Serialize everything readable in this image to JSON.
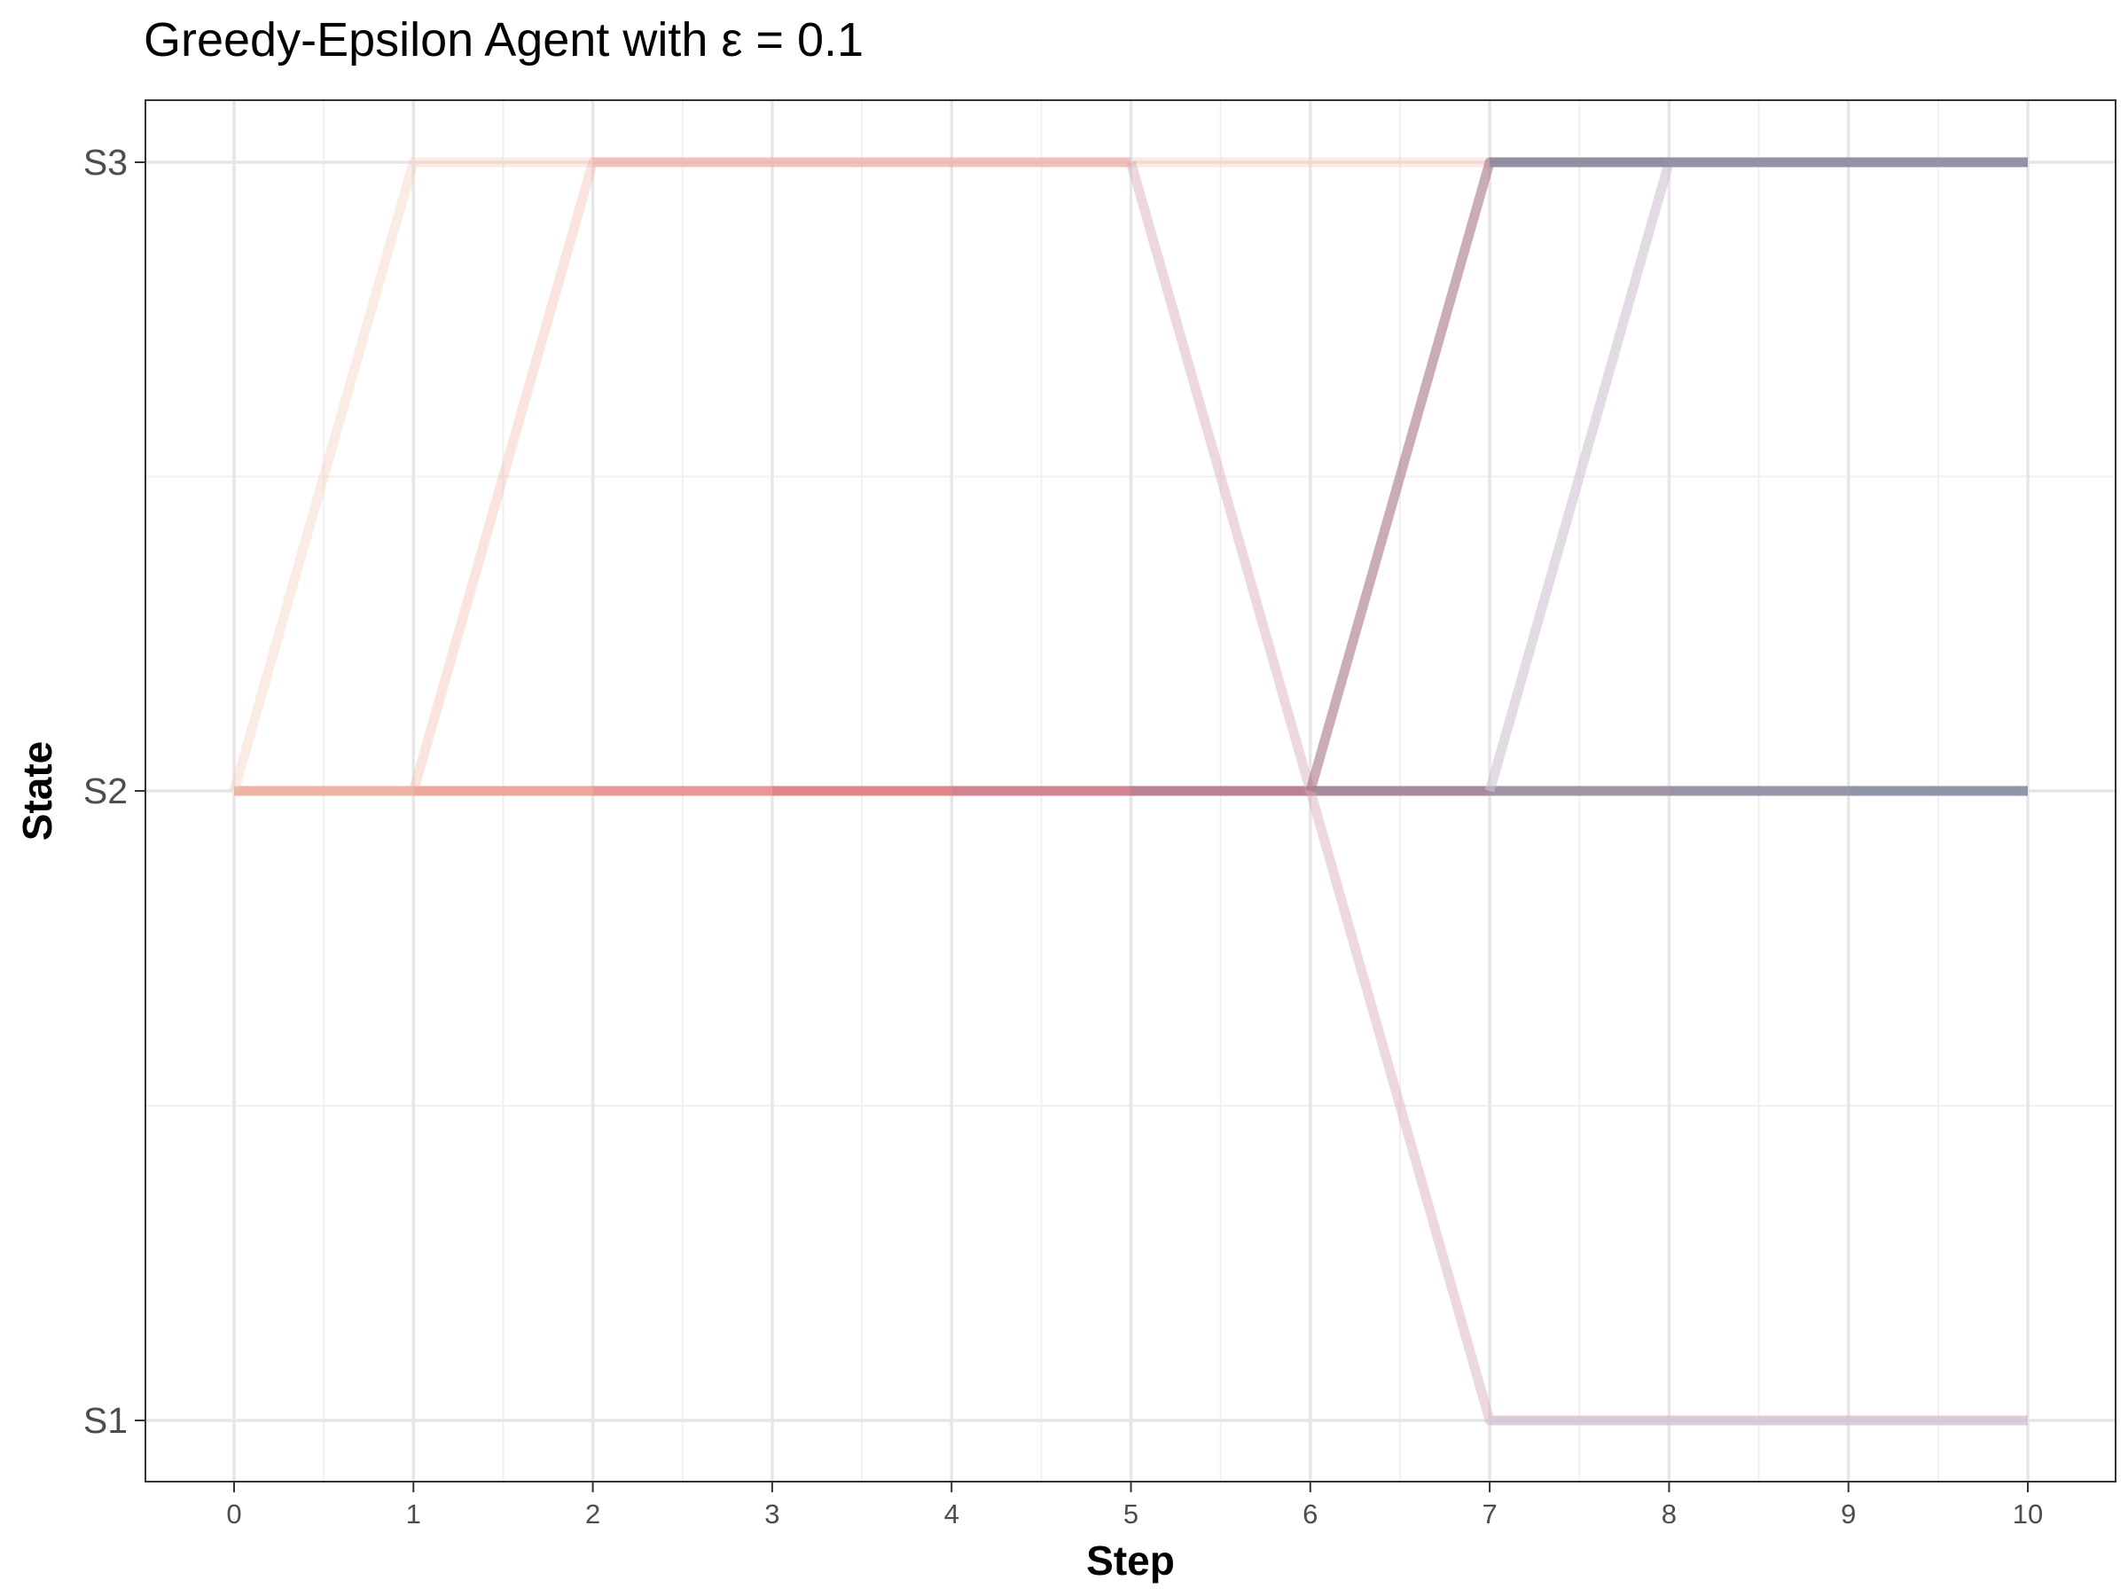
{
  "chart_data": {
    "type": "line",
    "title": "Greedy-Epsilon Agent with ε = 0.1",
    "xlabel": "Step",
    "ylabel": "State",
    "x_ticks": [
      0,
      1,
      2,
      3,
      4,
      5,
      6,
      7,
      8,
      9,
      10
    ],
    "x_tick_labels": [
      "0",
      "1",
      "2",
      "3",
      "4",
      "5",
      "6",
      "7",
      "8",
      "9",
      "10"
    ],
    "y_categories": [
      "S1",
      "S2",
      "S3"
    ],
    "xlim": [
      -0.5,
      10.5
    ],
    "grid": true,
    "legend": "none",
    "segments": [
      {
        "x": [
          0,
          1
        ],
        "y": [
          "S2",
          "S2"
        ],
        "color": "#ecb09c",
        "opacity": 0.95
      },
      {
        "x": [
          1,
          2
        ],
        "y": [
          "S2",
          "S2"
        ],
        "color": "#eca297",
        "opacity": 0.95
      },
      {
        "x": [
          2,
          3
        ],
        "y": [
          "S2",
          "S2"
        ],
        "color": "#e8908f",
        "opacity": 0.95
      },
      {
        "x": [
          3,
          4
        ],
        "y": [
          "S2",
          "S2"
        ],
        "color": "#e07f86",
        "opacity": 0.95
      },
      {
        "x": [
          4,
          5
        ],
        "y": [
          "S2",
          "S2"
        ],
        "color": "#cd7d8a",
        "opacity": 0.95
      },
      {
        "x": [
          5,
          6
        ],
        "y": [
          "S2",
          "S2"
        ],
        "color": "#b97a8e",
        "opacity": 0.95
      },
      {
        "x": [
          6,
          7
        ],
        "y": [
          "S2",
          "S2"
        ],
        "color": "#a58599",
        "opacity": 0.95
      },
      {
        "x": [
          7,
          8
        ],
        "y": [
          "S2",
          "S2"
        ],
        "color": "#9b8ea0",
        "opacity": 0.95
      },
      {
        "x": [
          8,
          9
        ],
        "y": [
          "S2",
          "S2"
        ],
        "color": "#928fa4",
        "opacity": 0.95
      },
      {
        "x": [
          9,
          10
        ],
        "y": [
          "S2",
          "S2"
        ],
        "color": "#8b90a5",
        "opacity": 0.95
      },
      {
        "x": [
          0,
          1,
          2,
          3,
          4,
          5,
          6,
          7,
          8,
          9,
          10
        ],
        "y": [
          "S2",
          "S3",
          "S3",
          "S3",
          "S3",
          "S3",
          "S3",
          "S3",
          "S3",
          "S3",
          "S3"
        ],
        "color": "#f6c7b5",
        "opacity": 0.35
      },
      {
        "x": [
          1,
          2,
          3,
          4,
          5
        ],
        "y": [
          "S2",
          "S3",
          "S3",
          "S3",
          "S3"
        ],
        "color": "#f3b0a4",
        "opacity": 0.35
      },
      {
        "x": [
          2,
          3,
          4,
          5
        ],
        "y": [
          "S3",
          "S3",
          "S3",
          "S3"
        ],
        "color": "#e89aa0",
        "opacity": 0.35
      },
      {
        "x": [
          5,
          6,
          7,
          8,
          9,
          10
        ],
        "y": [
          "S3",
          "S2",
          "S1",
          "S1",
          "S1",
          "S1"
        ],
        "color": "#d6a9b8",
        "opacity": 0.45
      },
      {
        "x": [
          6,
          7,
          8,
          9,
          10
        ],
        "y": [
          "S2",
          "S3",
          "S3",
          "S3",
          "S3"
        ],
        "color": "#a77386",
        "opacity": 0.6
      },
      {
        "x": [
          7,
          8,
          9,
          10
        ],
        "y": [
          "S2",
          "S3",
          "S3",
          "S3"
        ],
        "color": "#cfc3d0",
        "opacity": 0.6
      },
      {
        "x": [
          7,
          8,
          9,
          10
        ],
        "y": [
          "S3",
          "S3",
          "S3",
          "S3"
        ],
        "color": "#858aa0",
        "opacity": 0.8
      },
      {
        "x": [
          7,
          8,
          9,
          10
        ],
        "y": [
          "S1",
          "S1",
          "S1",
          "S1"
        ],
        "color": "#cfc5d3",
        "opacity": 0.55
      }
    ]
  }
}
